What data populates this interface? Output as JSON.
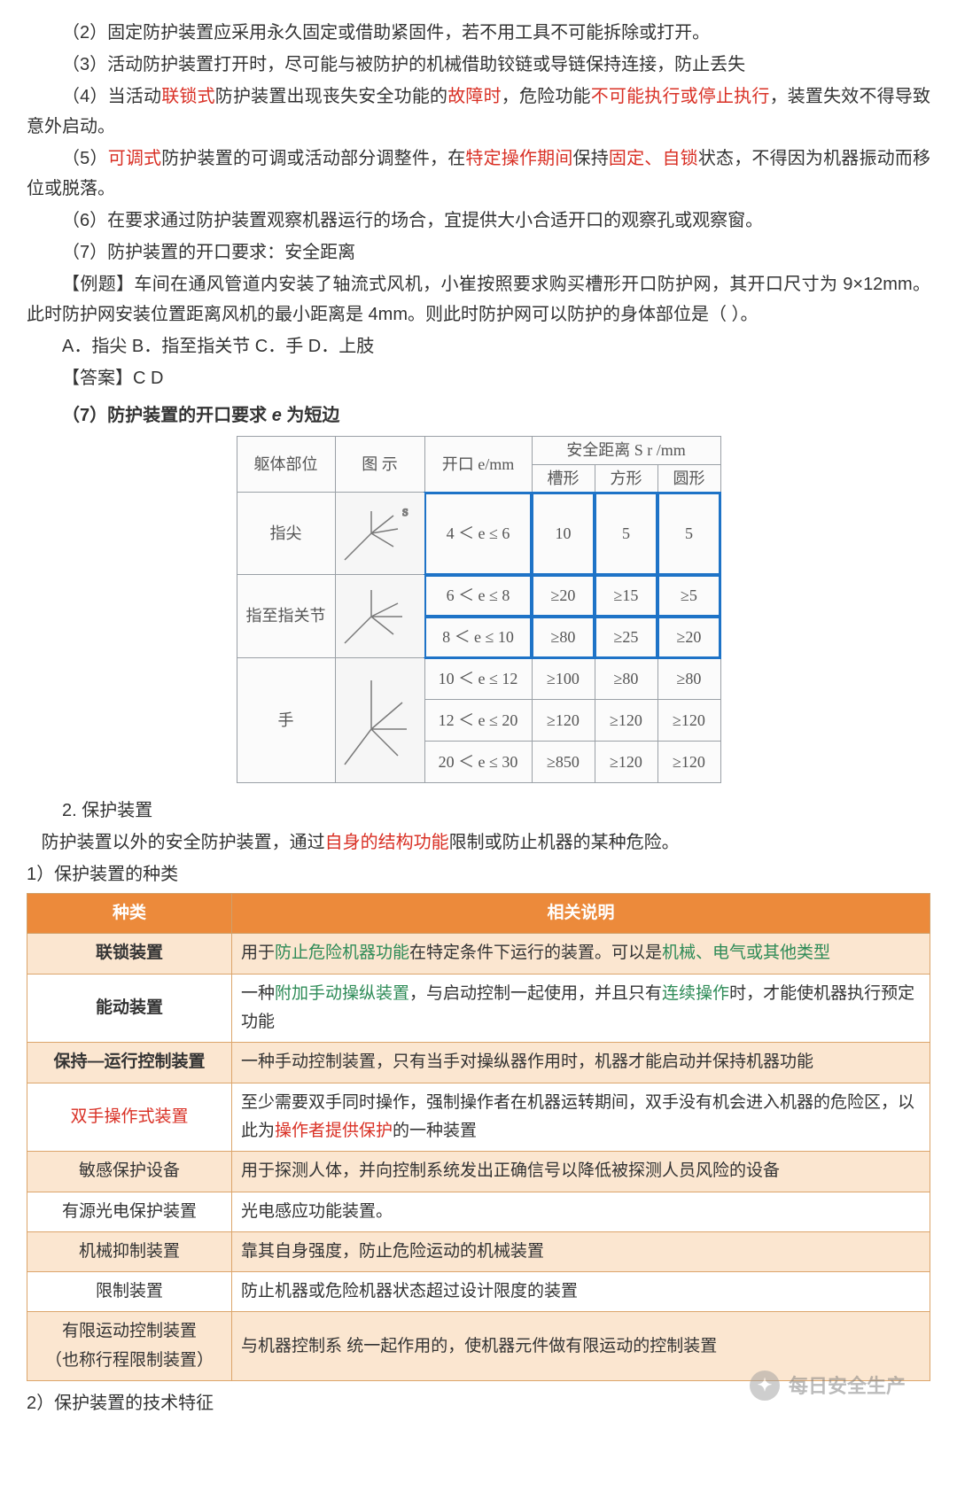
{
  "paragraphs": {
    "p2": "（2）固定防护装置应采用永久固定或借助紧固件，若不用工具不可能拆除或打开。",
    "p3": "（3）活动防护装置打开时，尽可能与被防护的机械借助铰链或导链保持连接，防止丢失",
    "p4a": "（4）当活动",
    "p4b": "联锁式",
    "p4c": "防护装置出现丧失安全功能的",
    "p4d": "故障时",
    "p4e": "，危险功能",
    "p4f": "不可能执行或停止执行",
    "p4g": "，装置失效不得导致意外启动。",
    "p5a": "（5）",
    "p5b": "可调式",
    "p5c": "防护装置的可调或活动部分调整件，在",
    "p5d": "特定操作期间",
    "p5e": "保持",
    "p5f": "固定、自锁",
    "p5g": "状态，不得因为机器振动而移位或脱落。",
    "p6": "（6）在要求通过防护装置观察机器运行的场合，宜提供大小合适开口的观察孔或观察窗。",
    "p7": "（7）防护装置的开口要求：安全距离",
    "ex1": "【例题】车间在通风管道内安装了轴流式风机，小崔按照要求购买槽形开口防护网，其开口尺寸为 9×12mm。此时防护网安装位置距离风机的最小距离是 4mm。则此时防护网可以防护的身体部位是（  ）。",
    "ex2": "A．指尖   B．指至指关节   C．手   D．上肢",
    "ans": "【答案】C D",
    "sec7a": "（7）防护装置的开口要求 ",
    "sec7b": "e",
    "sec7c": " 为短边",
    "h2": "2. 保护装置",
    "h2desc1": "   防护装置以外的安全防护装置，通过",
    "h2desc2": "自身的结构功能",
    "h2desc3": "限制或防止机器的某种危险。",
    "h3": "1）保护装置的种类",
    "h4": "2）保护装置的技术特征"
  },
  "scan_table": {
    "header": {
      "body": "躯体部位",
      "diagram": "图  示",
      "open": "开口 e/mm",
      "safe": "安全距离 S r /mm",
      "slot": "槽形",
      "square": "方形",
      "circle": "圆形"
    },
    "rows": [
      {
        "body": "指尖",
        "open": "4 ＜ e ≤ 6",
        "slot": "10",
        "square": "5",
        "circle": "5",
        "hl": true
      },
      {
        "body": "指至指关节",
        "open": "6 ＜ e ≤ 8",
        "slot": "≥20",
        "square": "≥15",
        "circle": "≥5",
        "hl": true
      },
      {
        "body": "",
        "open": "8 ＜ e ≤ 10",
        "slot": "≥80",
        "square": "≥25",
        "circle": "≥20",
        "hl": true
      },
      {
        "body": "手",
        "open": "10 ＜ e ≤ 12",
        "slot": "≥100",
        "square": "≥80",
        "circle": "≥80"
      },
      {
        "body": "",
        "open": "12 ＜ e ≤ 20",
        "slot": "≥120",
        "square": "≥120",
        "circle": "≥120"
      },
      {
        "body": "",
        "open": "20 ＜ e ≤ 30",
        "slot": "≥850",
        "square": "≥120",
        "circle": "≥120"
      }
    ]
  },
  "device_table": {
    "headers": {
      "type": "种类",
      "desc": "相关说明"
    },
    "rows": [
      {
        "alt": true,
        "name": "联锁装置",
        "name_style": "bold",
        "desc_parts": [
          {
            "t": "用于",
            "c": ""
          },
          {
            "t": "防止危险机器功能",
            "c": "green"
          },
          {
            "t": "在特定条件下运行的装置。可以是",
            "c": ""
          },
          {
            "t": "机械、电气或其他类型",
            "c": "green"
          }
        ]
      },
      {
        "alt": false,
        "name": "能动装置",
        "name_style": "bold",
        "desc_parts": [
          {
            "t": "一种",
            "c": ""
          },
          {
            "t": "附加手动操纵装置",
            "c": "green"
          },
          {
            "t": "，与启动控制一起使用，并且只有",
            "c": ""
          },
          {
            "t": "连续操作",
            "c": "green"
          },
          {
            "t": "时，才能使机器执行预定功能",
            "c": ""
          }
        ]
      },
      {
        "alt": true,
        "name": "保持—运行控制装置",
        "name_style": "bold",
        "desc_parts": [
          {
            "t": "一种手动控制装置，只有当手对操纵器作用时，机器才能启动并保持机器功能",
            "c": ""
          }
        ]
      },
      {
        "alt": false,
        "name": "双手操作式装置",
        "name_style": "red",
        "desc_parts": [
          {
            "t": "至少需要双手同时操作，强制操作者在机器运转期间，双手没有机会进入机器的危险区，以此为",
            "c": ""
          },
          {
            "t": "操作者提供保护",
            "c": "red"
          },
          {
            "t": "的一种装置",
            "c": ""
          }
        ]
      },
      {
        "alt": true,
        "name": "敏感保护设备",
        "name_style": "",
        "desc_parts": [
          {
            "t": "用于探测人体，并向控制系统发出正确信号以降低被探测人员风险的设备",
            "c": ""
          }
        ]
      },
      {
        "alt": false,
        "name": "有源光电保护装置",
        "name_style": "",
        "desc_parts": [
          {
            "t": "光电感应功能装置。",
            "c": ""
          }
        ]
      },
      {
        "alt": true,
        "name": "机械抑制装置",
        "name_style": "",
        "desc_parts": [
          {
            "t": "靠其自身强度，防止危险运动的机械装置",
            "c": ""
          }
        ]
      },
      {
        "alt": false,
        "name": "限制装置",
        "name_style": "",
        "desc_parts": [
          {
            "t": "防止机器或危险机器状态超过设计限度的装置",
            "c": ""
          }
        ]
      },
      {
        "alt": true,
        "name": "有限运动控制装置\n（也称行程限制装置）",
        "name_style": "",
        "desc_parts": [
          {
            "t": "与机器控制系  统一起作用的，使机器元件做有限运动的控制装置",
            "c": ""
          }
        ]
      }
    ]
  },
  "watermark": "每日安全生产",
  "colors": {
    "red": "#d93025",
    "green": "#2e8b57",
    "orange_header": "#ec8a3b",
    "orange_alt": "#fbe6d0",
    "table_border": "#dca56b",
    "scan_border": "#9aa0a6",
    "blue_box": "#1e73c7"
  }
}
